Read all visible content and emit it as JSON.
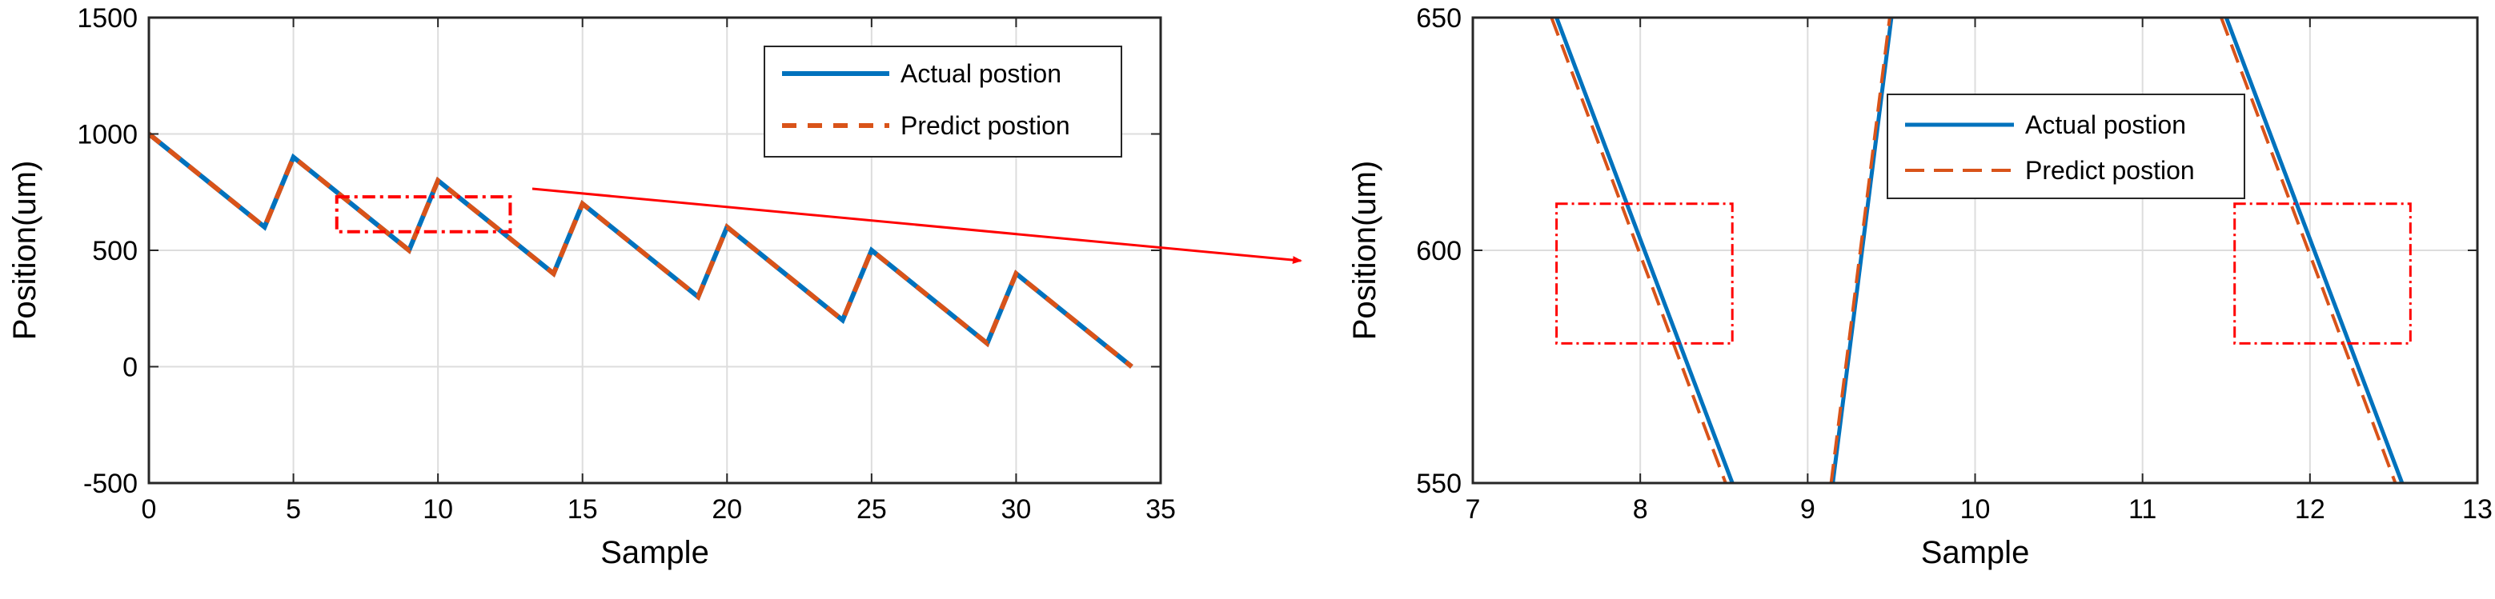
{
  "colors": {
    "actual": "#0072BD",
    "predict": "#D95319",
    "annotation": "#FF0000",
    "grid": "#DDDDDD"
  },
  "chart_data": [
    {
      "type": "line",
      "xlabel": "Sample",
      "ylabel": "Position(um)",
      "xlim": [
        0,
        35
      ],
      "ylim": [
        -500,
        1500
      ],
      "xticks": [
        0,
        5,
        10,
        15,
        20,
        25,
        30,
        35
      ],
      "yticks": [
        -500,
        0,
        500,
        1000,
        1500
      ],
      "grid": true,
      "legend_position": "top-right",
      "series": [
        {
          "name": "Actual postion",
          "x": [
            0,
            4,
            5,
            9,
            10,
            14,
            15,
            19,
            20,
            24,
            25,
            29,
            30,
            34
          ],
          "y": [
            1000,
            600,
            900,
            500,
            800,
            400,
            700,
            300,
            600,
            200,
            500,
            100,
            400,
            0
          ]
        },
        {
          "name": "Predict postion",
          "x": [
            0,
            4,
            5,
            9,
            10,
            14,
            15,
            19,
            20,
            24,
            25,
            29,
            30,
            34
          ],
          "y": [
            1000,
            600,
            900,
            500,
            800,
            400,
            700,
            300,
            600,
            200,
            500,
            100,
            400,
            0
          ]
        }
      ],
      "highlight_box": {
        "x": [
          6.5,
          12.5
        ],
        "y": [
          580,
          730
        ]
      }
    },
    {
      "type": "line",
      "xlabel": "Sample",
      "ylabel": "Position(um)",
      "xlim": [
        7,
        13
      ],
      "ylim": [
        550,
        650
      ],
      "xticks": [
        7,
        8,
        9,
        10,
        11,
        12,
        13
      ],
      "yticks": [
        550,
        600,
        650
      ],
      "grid": true,
      "legend_position": "top-center",
      "series": [
        {
          "name": "Actual postion",
          "segments": [
            {
              "x": [
                7.5,
                8.55
              ],
              "y": [
                650,
                550
              ]
            },
            {
              "x": [
                9.15,
                9.5
              ],
              "y": [
                550,
                650
              ]
            },
            {
              "x": [
                11.5,
                12.55
              ],
              "y": [
                650,
                550
              ]
            }
          ]
        },
        {
          "name": "Predict postion",
          "segments": [
            {
              "x": [
                7.47,
                8.51
              ],
              "y": [
                650,
                550
              ]
            },
            {
              "x": [
                9.14,
                9.49
              ],
              "y": [
                550,
                650
              ]
            },
            {
              "x": [
                11.47,
                12.51
              ],
              "y": [
                650,
                550
              ]
            }
          ]
        }
      ],
      "highlight_boxes": [
        {
          "x": [
            7.5,
            8.55
          ],
          "y": [
            580,
            610
          ]
        },
        {
          "x": [
            11.55,
            12.6
          ],
          "y": [
            580,
            610
          ]
        }
      ]
    }
  ]
}
